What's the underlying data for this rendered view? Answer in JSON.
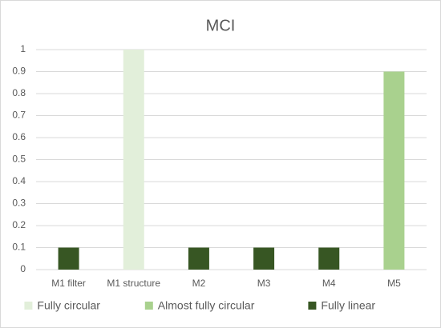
{
  "chart_data": {
    "type": "bar",
    "title": "MCI",
    "categories": [
      "M1 filter",
      "M1 structure",
      "M2",
      "M3",
      "M4",
      "M5"
    ],
    "series": [
      {
        "name": "Fully circular",
        "color": "#e2efda",
        "values": [
          null,
          1,
          null,
          null,
          null,
          null
        ]
      },
      {
        "name": "Almost fully circular",
        "color": "#a9d18e",
        "values": [
          null,
          null,
          null,
          null,
          null,
          0.9
        ]
      },
      {
        "name": "Fully linear",
        "color": "#375623",
        "values": [
          0.1,
          null,
          0.1,
          0.1,
          0.1,
          null
        ]
      }
    ],
    "ylim": [
      0,
      1
    ],
    "yticks": [
      0,
      0.1,
      0.2,
      0.3,
      0.4,
      0.5,
      0.6,
      0.7,
      0.8,
      0.9,
      1
    ],
    "grid": true,
    "legend": "bottom"
  }
}
